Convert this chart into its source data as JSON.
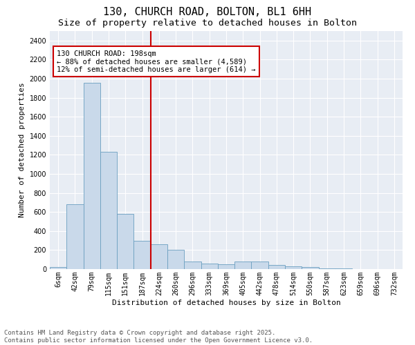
{
  "title_line1": "130, CHURCH ROAD, BOLTON, BL1 6HH",
  "title_line2": "Size of property relative to detached houses in Bolton",
  "xlabel": "Distribution of detached houses by size in Bolton",
  "ylabel": "Number of detached properties",
  "bar_color": "#c9d9ea",
  "bar_edge_color": "#6a9fc0",
  "background_color": "#e8edf4",
  "vline_color": "#cc0000",
  "annotation_text": "130 CHURCH ROAD: 198sqm\n← 88% of detached houses are smaller (4,589)\n12% of semi-detached houses are larger (614) →",
  "bins": [
    "6sqm",
    "42sqm",
    "79sqm",
    "115sqm",
    "151sqm",
    "187sqm",
    "224sqm",
    "260sqm",
    "296sqm",
    "333sqm",
    "369sqm",
    "405sqm",
    "442sqm",
    "478sqm",
    "514sqm",
    "550sqm",
    "587sqm",
    "623sqm",
    "659sqm",
    "696sqm",
    "732sqm"
  ],
  "values": [
    20,
    680,
    1960,
    1230,
    580,
    300,
    260,
    200,
    80,
    60,
    50,
    80,
    80,
    40,
    30,
    20,
    10,
    5,
    3,
    3,
    2
  ],
  "vline_pos": 5.5,
  "ylim": [
    0,
    2500
  ],
  "yticks": [
    0,
    200,
    400,
    600,
    800,
    1000,
    1200,
    1400,
    1600,
    1800,
    2000,
    2200,
    2400
  ],
  "footnote": "Contains HM Land Registry data © Crown copyright and database right 2025.\nContains public sector information licensed under the Open Government Licence v3.0.",
  "title_fontsize": 11,
  "subtitle_fontsize": 9.5,
  "axis_label_fontsize": 8,
  "tick_fontsize": 7,
  "annotation_fontsize": 7.5,
  "footnote_fontsize": 6.5
}
